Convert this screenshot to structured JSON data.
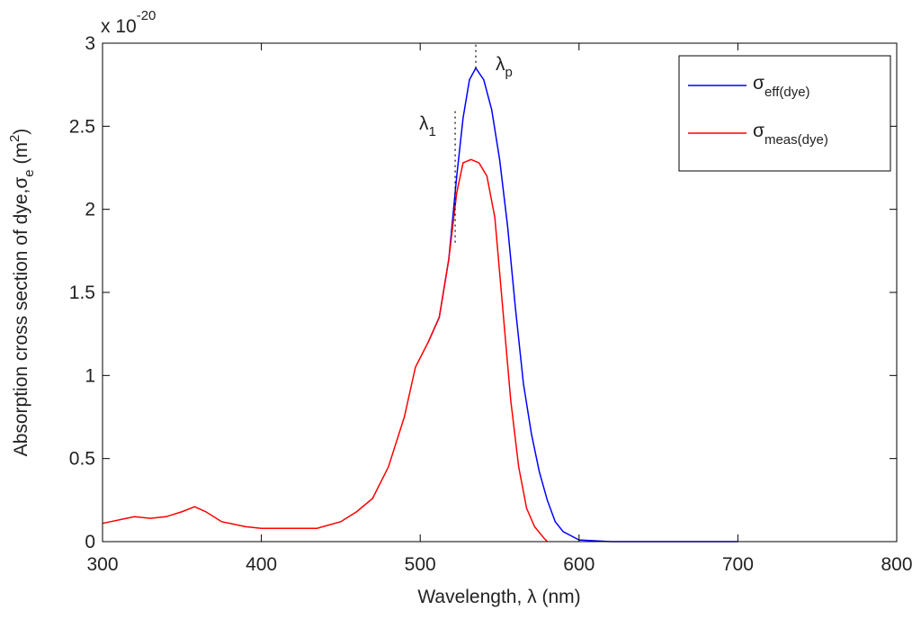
{
  "chart_data": {
    "type": "line",
    "axis_multiplier": {
      "base": "x 10",
      "exponent": "-20"
    },
    "xlabel": "Wavelength, λ (nm)",
    "ylabel": {
      "text": "Absorption cross section of dye,σ",
      "sub": "e",
      "mid": " (m",
      "sup": "2",
      "end": ")"
    },
    "xlim": [
      300,
      800
    ],
    "xticks": [
      300,
      400,
      500,
      600,
      700,
      800
    ],
    "ylim": [
      0,
      3
    ],
    "yticks": [
      0,
      0.5,
      1,
      1.5,
      2,
      2.5,
      3
    ],
    "legend": "upper right",
    "series": [
      {
        "name": "σ",
        "name_sub": "eff(dye)",
        "color": "#0000ff",
        "x": [
          505,
          512,
          518,
          523,
          527,
          531,
          535,
          540,
          545,
          550,
          555,
          560,
          565,
          570,
          575,
          580,
          585,
          590,
          600,
          620,
          650,
          700
        ],
        "values": [
          1.2,
          1.35,
          1.7,
          2.2,
          2.55,
          2.78,
          2.85,
          2.78,
          2.6,
          2.3,
          1.9,
          1.4,
          0.95,
          0.65,
          0.42,
          0.25,
          0.12,
          0.06,
          0.01,
          0,
          0,
          0
        ]
      },
      {
        "name": "σ",
        "name_sub": "meas(dye)",
        "color": "#ff0000",
        "x": [
          300,
          310,
          320,
          330,
          340,
          350,
          358,
          365,
          375,
          390,
          400,
          420,
          435,
          450,
          460,
          470,
          480,
          490,
          497,
          505,
          512,
          518,
          523,
          527,
          532,
          537,
          542,
          547,
          552,
          557,
          562,
          567,
          572,
          578,
          580
        ],
        "values": [
          0.11,
          0.13,
          0.15,
          0.14,
          0.15,
          0.18,
          0.21,
          0.18,
          0.12,
          0.09,
          0.08,
          0.08,
          0.08,
          0.12,
          0.18,
          0.26,
          0.45,
          0.75,
          1.05,
          1.2,
          1.35,
          1.7,
          2.1,
          2.28,
          2.3,
          2.28,
          2.2,
          1.95,
          1.4,
          0.85,
          0.45,
          0.2,
          0.09,
          0.02,
          0
        ]
      }
    ],
    "markers": [
      {
        "label": "λ",
        "sub": "1",
        "x": 522,
        "y": [
          1.8,
          2.6
        ]
      },
      {
        "label": "λ",
        "sub": "p",
        "x": 535,
        "y": [
          2.85,
          3
        ]
      }
    ]
  }
}
